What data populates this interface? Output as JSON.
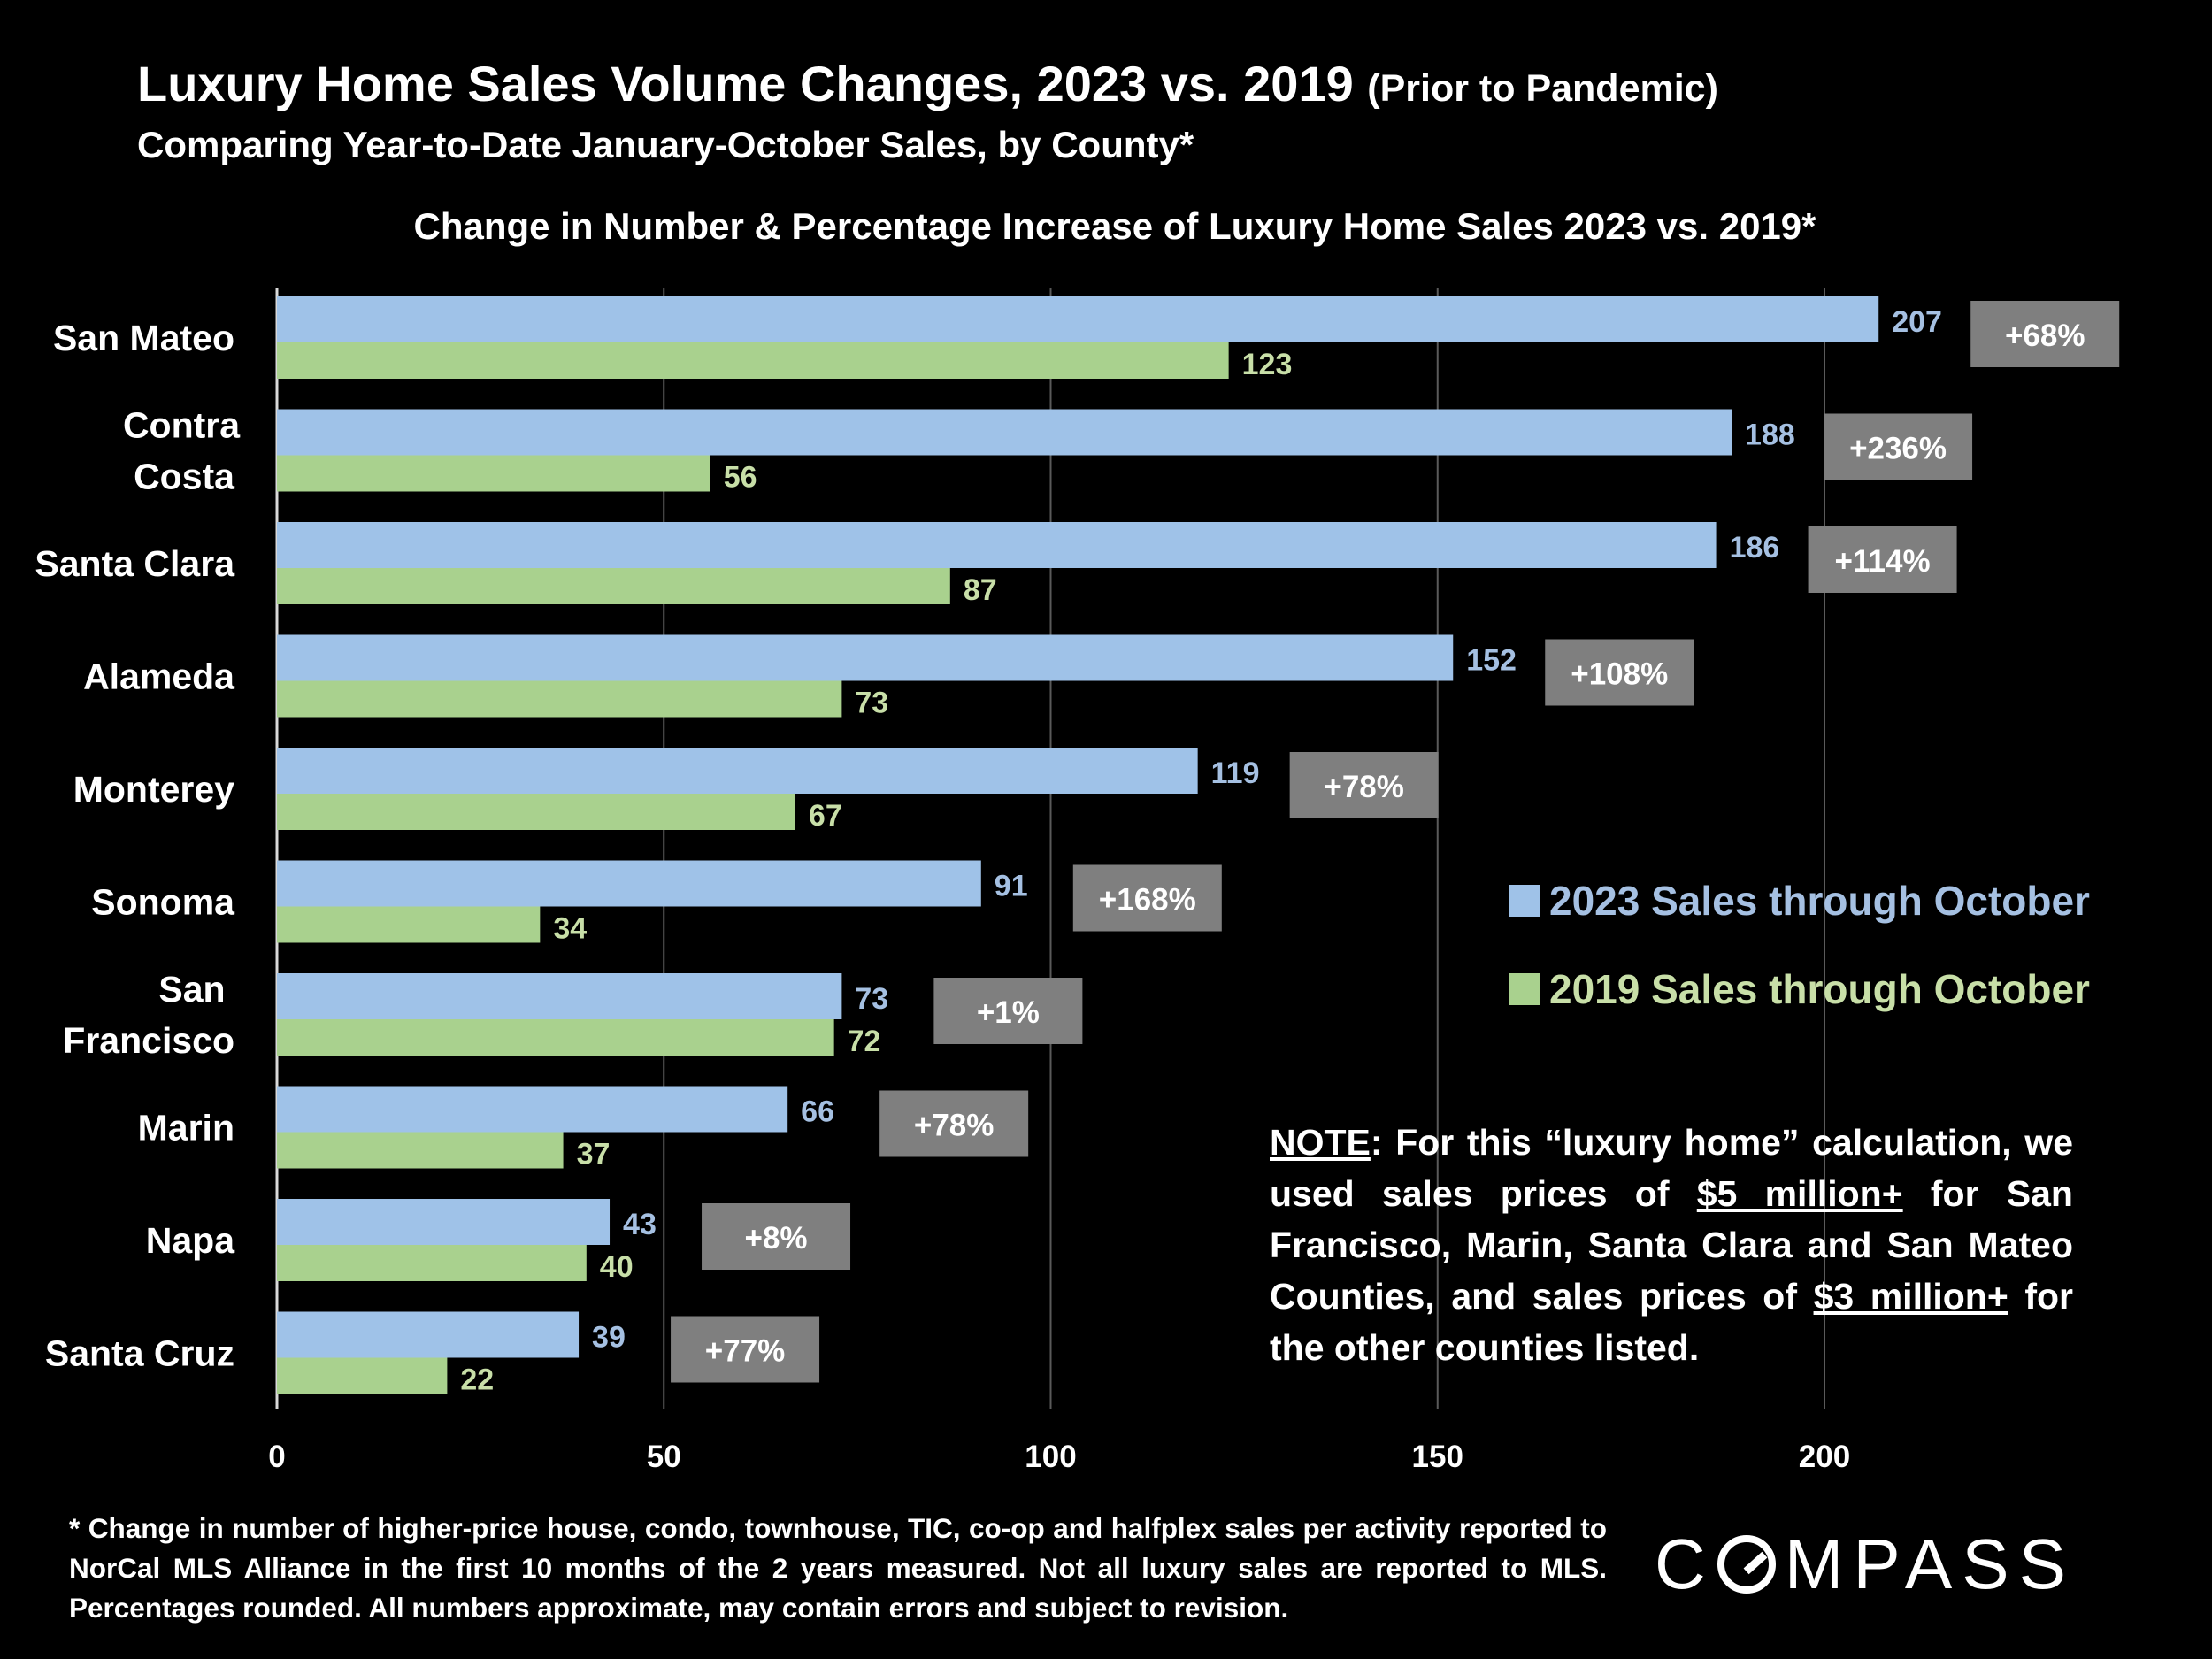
{
  "header": {
    "title_main": "Luxury Home Sales Volume Changes, 2023 vs. 2019",
    "title_suffix": "(Prior to Pandemic)",
    "subtitle": "Comparing Year-to-Date January-October Sales, by County*"
  },
  "chart_data": {
    "type": "bar",
    "orientation": "horizontal",
    "title": "Change in Number & Percentage Increase of Luxury Home Sales 2023 vs. 2019*",
    "categories": [
      "San Mateo",
      "Contra Costa",
      "Santa Clara",
      "Alameda",
      "Monterey",
      "Sonoma",
      "San Francisco",
      "Marin",
      "Napa",
      "Santa Cruz"
    ],
    "category_lines": [
      [
        "San Mateo"
      ],
      [
        "Contra",
        "Costa"
      ],
      [
        "Santa Clara"
      ],
      [
        "Alameda"
      ],
      [
        "Monterey"
      ],
      [
        "Sonoma"
      ],
      [
        "San",
        "Francisco"
      ],
      [
        "Marin"
      ],
      [
        "Napa"
      ],
      [
        "Santa Cruz"
      ]
    ],
    "series": [
      {
        "name": "2023 Sales through October",
        "color": "#9fc2e8",
        "values": [
          207,
          188,
          186,
          152,
          119,
          91,
          73,
          66,
          43,
          39
        ]
      },
      {
        "name": "2019 Sales through October",
        "color": "#a9d18e",
        "values": [
          123,
          56,
          87,
          73,
          67,
          34,
          72,
          37,
          40,
          22
        ]
      }
    ],
    "percent_change": [
      "+68%",
      "+236%",
      "+114%",
      "+108%",
      "+78%",
      "+168%",
      "+1%",
      "+78%",
      "+8%",
      "+77%"
    ],
    "percent_box_color": "#7f7f7f",
    "x_ticks": [
      0,
      50,
      100,
      150,
      200
    ],
    "xlim": [
      0,
      240
    ],
    "grid": "vertical gridlines",
    "legend_position": "right"
  },
  "note": {
    "label": "NOTE",
    "t1": ": For this “luxury home” calculation, we used sales prices of ",
    "u1": "$5 million+",
    "t2": " for San Francisco, Marin, Santa Clara and San Mateo Counties, and sales prices of ",
    "u2": "$3 million+",
    "t3": " for the other counties listed."
  },
  "footnote": "* Change in number of higher-price house, condo, townhouse, TIC, co-op and halfplex sales per activity reported to NorCal MLS Alliance in the first 10 months of the 2 years measured. Not all luxury sales are reported to MLS. Percentages rounded. All numbers approximate, may contain errors and subject to revision.",
  "logo": {
    "pre": "C",
    "post": "MPASS"
  }
}
